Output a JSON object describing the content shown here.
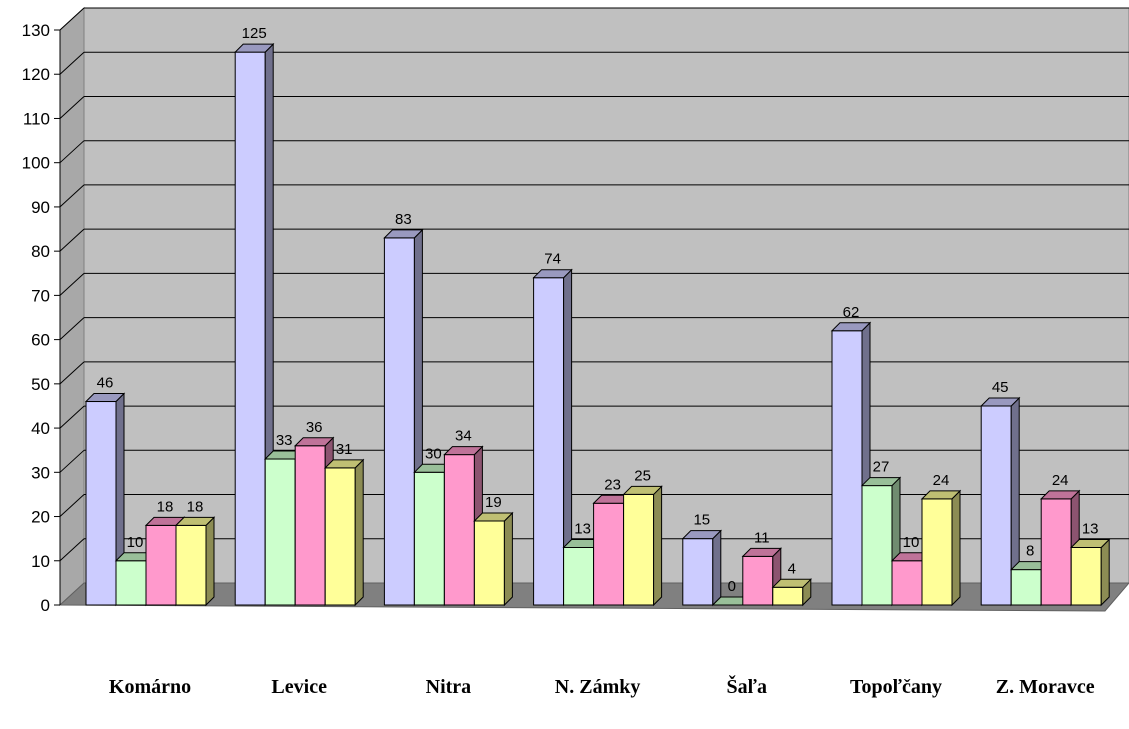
{
  "chart_data": {
    "type": "bar",
    "title": "",
    "xlabel": "",
    "ylabel": "",
    "ylim": [
      0,
      130
    ],
    "yticks": [
      0,
      10,
      20,
      30,
      40,
      50,
      60,
      70,
      80,
      90,
      100,
      110,
      120,
      130
    ],
    "grid": true,
    "three_d": true,
    "categories": [
      "Komárno",
      "Levice",
      "Nitra",
      "N. Zámky",
      "Šaľa",
      "Topoľčany",
      "Z. Moravce"
    ],
    "series": [
      {
        "values": [
          46,
          125,
          83,
          74,
          15,
          62,
          45
        ],
        "color": "#CCCCFF"
      },
      {
        "values": [
          10,
          33,
          30,
          13,
          0,
          27,
          8
        ],
        "color": "#CCFFCC"
      },
      {
        "values": [
          18,
          36,
          34,
          23,
          11,
          10,
          24
        ],
        "color": "#FF99CC"
      },
      {
        "values": [
          18,
          31,
          19,
          25,
          4,
          24,
          13
        ],
        "color": "#FFFF99"
      }
    ],
    "wall_color": "#C0C0C0"
  }
}
